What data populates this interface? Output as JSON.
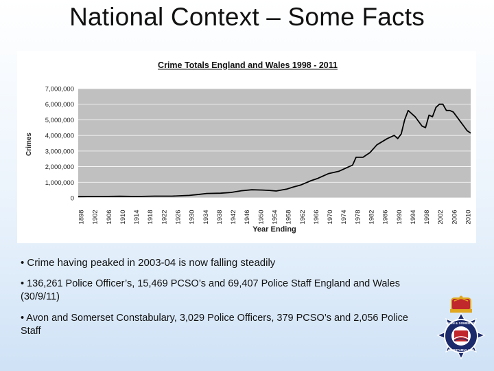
{
  "slide": {
    "title": "National Context – Some Facts",
    "bullets": [
      "• Crime having peaked in 2003-04 is now falling steadily",
      "• 136,261 Police Officer’s, 15,469 PCSO’s and 69,407 Police Staff England and Wales (30/9/11)",
      "• Avon and Somerset Constabulary, 3,029 Police Officers, 379 PCSO’s and 2,056 Police Staff"
    ],
    "badge": {
      "name": "Avon and Somerset Constabulary crest",
      "lettering": [
        "AVON & SOMERSET",
        "CONSTABULARY"
      ],
      "icon": "police-crest-icon",
      "colors": {
        "gold": "#e0a820",
        "navy": "#1b2a6b",
        "red": "#c0282c"
      }
    }
  },
  "chart_data": {
    "type": "line",
    "title": "Crime Totals England and Wales 1998 - 2011",
    "xlabel": "Year Ending",
    "ylabel": "Crimes",
    "ylim": [
      0,
      7000000
    ],
    "yticks": [
      0,
      1000000,
      2000000,
      3000000,
      4000000,
      5000000,
      6000000,
      7000000
    ],
    "ytick_labels": [
      "0",
      "1,000,000",
      "2,000,000",
      "3,000,000",
      "4,000,000",
      "5,000,000",
      "6,000,000",
      "7,000,000"
    ],
    "xlim": [
      1898,
      2011
    ],
    "xtick_labels": [
      "1898",
      "1902",
      "1906",
      "1910",
      "1914",
      "1918",
      "1922",
      "1926",
      "1930",
      "1934",
      "1938",
      "1942",
      "1946",
      "1950",
      "1954",
      "1958",
      "1962",
      "1966",
      "1970",
      "1974",
      "1978",
      "1982",
      "1986",
      "1990",
      "1994",
      "1998",
      "2002",
      "2006",
      "2010"
    ],
    "plot_bg": "#c0c0c0",
    "line_color": "#000000",
    "series": [
      {
        "name": "Crimes",
        "x": [
          1898,
          1905,
          1910,
          1915,
          1920,
          1925,
          1930,
          1933,
          1935,
          1939,
          1942,
          1945,
          1948,
          1951,
          1953,
          1955,
          1958,
          1960,
          1962,
          1965,
          1967,
          1970,
          1973,
          1975,
          1977,
          1978,
          1980,
          1982,
          1984,
          1987,
          1989,
          1990,
          1991,
          1992,
          1993,
          1995,
          1997,
          1998,
          1999,
          2000,
          2001,
          2002,
          2003,
          2004,
          2005,
          2006,
          2007,
          2008,
          2009,
          2010,
          2011
        ],
        "y": [
          80000,
          90000,
          100000,
          90000,
          110000,
          110000,
          160000,
          230000,
          280000,
          300000,
          350000,
          460000,
          520000,
          500000,
          480000,
          440000,
          560000,
          700000,
          820000,
          1100000,
          1250000,
          1550000,
          1700000,
          1900000,
          2100000,
          2600000,
          2600000,
          2900000,
          3400000,
          3800000,
          4000000,
          3800000,
          4100000,
          5000000,
          5600000,
          5200000,
          4600000,
          4500000,
          5300000,
          5200000,
          5800000,
          6000000,
          6000000,
          5600000,
          5600000,
          5500000,
          5200000,
          4900000,
          4600000,
          4300000,
          4150000
        ]
      }
    ]
  }
}
